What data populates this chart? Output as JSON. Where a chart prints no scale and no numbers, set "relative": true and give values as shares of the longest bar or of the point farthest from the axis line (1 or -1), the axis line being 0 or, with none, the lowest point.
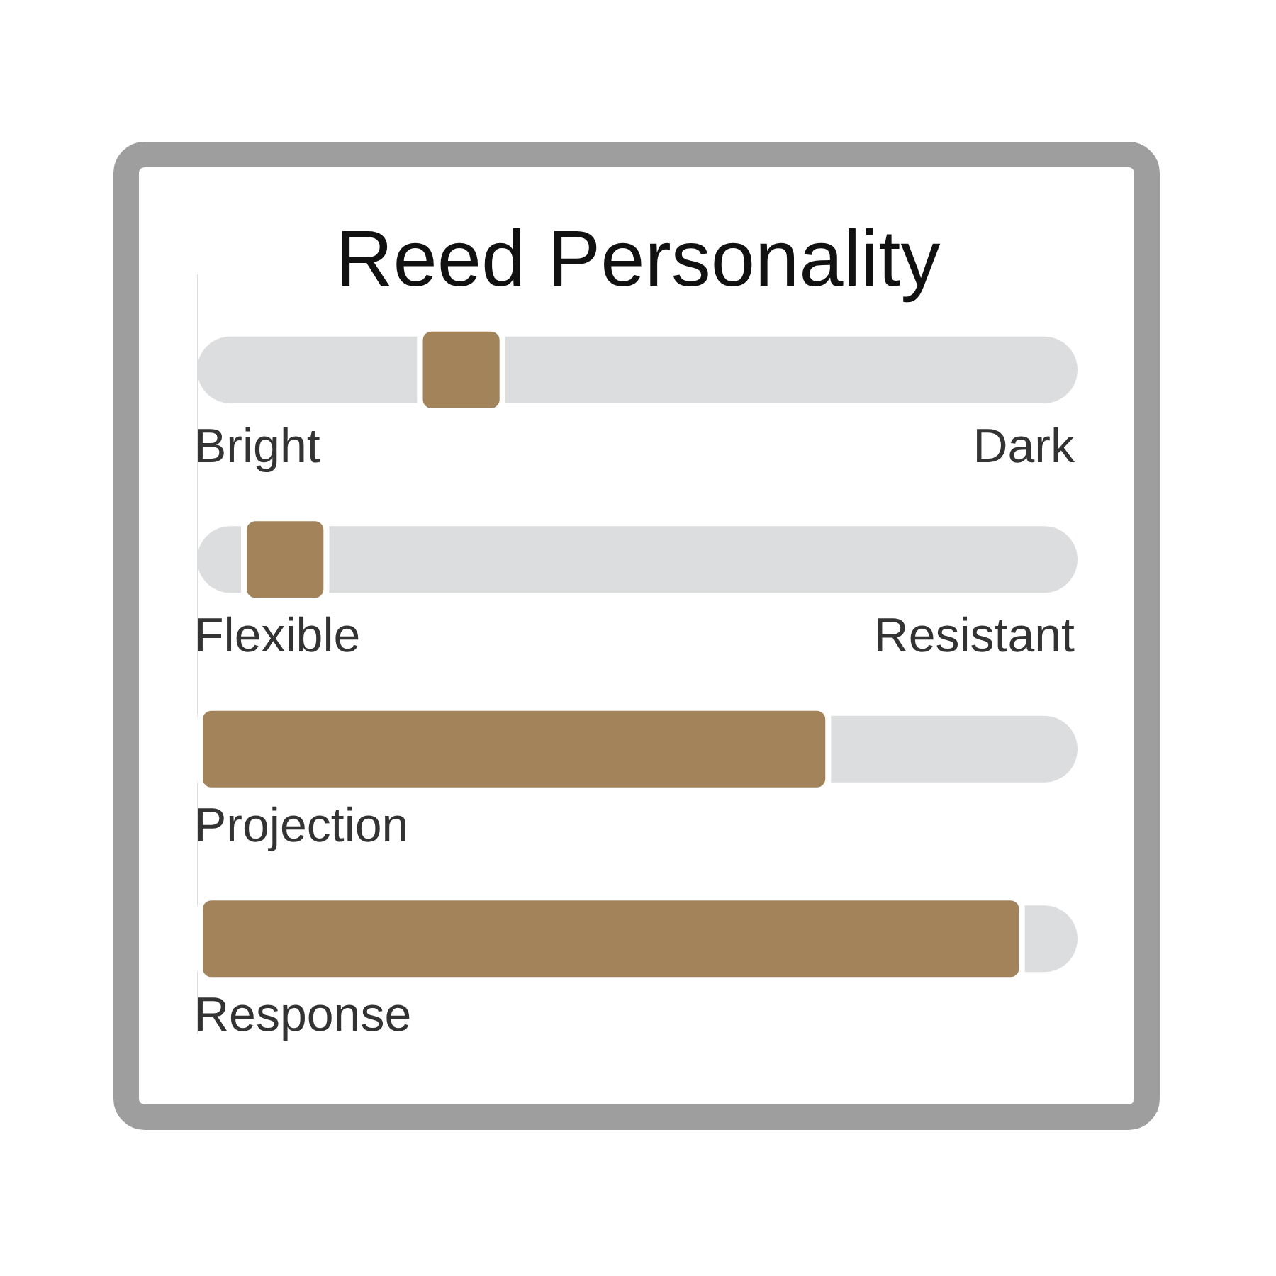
{
  "chart_data": {
    "type": "bar",
    "title": "Reed Personality",
    "orientation": "horizontal",
    "relative": true,
    "stacked": true,
    "categories": [
      "Bright",
      "Flexible",
      "Projection",
      "Response"
    ],
    "annotations": [
      "Dark",
      "Resistant"
    ],
    "series": [
      {
        "color": "#dcdddf",
        "values": [
          0.25,
          0.05,
          null,
          null
        ]
      },
      {
        "color": "#a3835a",
        "values": [
          0.1,
          0.1,
          0.72,
          0.94
        ]
      },
      {
        "color": "#dcdddf",
        "values": [
          0.65,
          0.85,
          0.28,
          0.06
        ]
      }
    ]
  }
}
